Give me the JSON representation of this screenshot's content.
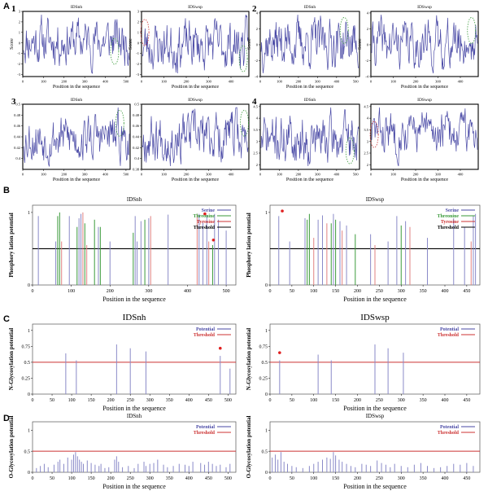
{
  "panel_labels": {
    "A": "A",
    "B": "B",
    "C": "C",
    "D": "D"
  },
  "chart_data": [
    {
      "id": "A1-IDSnh",
      "type": "line",
      "subplot": "1",
      "title": "IDSnh",
      "xlabel": "Position in the sequence",
      "ylabel": "Score",
      "ylim": [
        -3.2,
        3
      ],
      "yticks": [
        -3,
        -2,
        -1,
        0,
        1,
        2,
        3
      ],
      "xlim": [
        0,
        520
      ],
      "xticks": [
        0,
        100,
        200,
        300,
        400,
        500
      ],
      "seed": 11,
      "color": "#4a4aa6",
      "highlights": [
        {
          "x": 445,
          "y": -0.8,
          "color": "#3a9a3a"
        }
      ]
    },
    {
      "id": "A1-IDSwsp",
      "type": "line",
      "title": "IDSwsp",
      "xlabel": "Position in the sequence",
      "ylabel": "Score",
      "ylim": [
        -3.2,
        3
      ],
      "yticks": [
        -3,
        -2,
        -1,
        0,
        1,
        2,
        3
      ],
      "xlim": [
        0,
        480
      ],
      "xticks": [
        0,
        100,
        200,
        300,
        400
      ],
      "seed": 23,
      "color": "#4a4aa6",
      "highlights": [
        {
          "x": 15,
          "y": 1.0,
          "color": "#cc3333"
        },
        {
          "x": 455,
          "y": -1.5,
          "color": "#3a9a3a"
        }
      ]
    },
    {
      "id": "A2-IDSnh",
      "type": "line",
      "subplot": "2",
      "title": "IDSnh",
      "xlabel": "Position in the sequence",
      "ylabel": "Score",
      "ylim": [
        -4,
        4.2
      ],
      "yticks": [
        -4,
        -2,
        0,
        2,
        4
      ],
      "xlim": [
        0,
        520
      ],
      "xticks": [
        0,
        100,
        200,
        300,
        400,
        500
      ],
      "seed": 37,
      "color": "#4a4aa6",
      "highlights": [
        {
          "x": 440,
          "y": 1.8,
          "color": "#3a9a3a"
        }
      ]
    },
    {
      "id": "A2-IDSwsp",
      "type": "line",
      "title": "IDSwsp",
      "xlabel": "Position in the sequence",
      "ylabel": "Score",
      "ylim": [
        -4,
        4.2
      ],
      "yticks": [
        -4,
        -2,
        0,
        2,
        4
      ],
      "xlim": [
        0,
        480
      ],
      "xticks": [
        0,
        100,
        200,
        300,
        400
      ],
      "seed": 41,
      "color": "#4a4aa6",
      "highlights": [
        {
          "x": 450,
          "y": 1.8,
          "color": "#3a9a3a"
        }
      ]
    },
    {
      "id": "A3-IDSnh",
      "type": "line",
      "subplot": "3",
      "title": "IDSnh",
      "xlabel": "Position in the sequence",
      "ylabel": "",
      "ylim": [
        0.38,
        0.5
      ],
      "yticks": [
        0.4,
        0.42,
        0.44,
        0.46,
        0.48,
        0.5
      ],
      "xlim": [
        0,
        520
      ],
      "xticks": [
        0,
        100,
        200,
        300,
        400,
        500
      ],
      "seed": 53,
      "color": "#4a4aa6",
      "highlights": [
        {
          "x": 470,
          "y": 0.465,
          "color": "#3a9a3a"
        }
      ]
    },
    {
      "id": "A3-IDSwsp",
      "type": "line",
      "title": "IDSwsp",
      "xlabel": "Position in the sequence",
      "ylabel": "",
      "ylim": [
        0.38,
        0.5
      ],
      "yticks": [
        0.38,
        0.4,
        0.42,
        0.44,
        0.46,
        0.48,
        0.5
      ],
      "xlim": [
        0,
        480
      ],
      "xticks": [
        0,
        100,
        200,
        300,
        400
      ],
      "seed": 67,
      "color": "#4a4aa6",
      "highlights": [
        {
          "x": 460,
          "y": 0.465,
          "color": "#3a9a3a"
        }
      ]
    },
    {
      "id": "A4-IDSnh",
      "type": "line",
      "subplot": "4",
      "title": "IDSnh",
      "xlabel": "Position in the sequence",
      "ylabel": "",
      "ylim": [
        1.8,
        4.6
      ],
      "yticks": [
        2,
        2.5,
        3,
        3.5,
        4,
        4.5
      ],
      "xlim": [
        0,
        520
      ],
      "xticks": [
        0,
        100,
        200,
        300,
        400,
        500
      ],
      "seed": 71,
      "color": "#4a4aa6",
      "highlights": [
        {
          "x": 470,
          "y": 2.6,
          "color": "#3a9a3a"
        }
      ]
    },
    {
      "id": "A4-IDSwsp",
      "type": "line",
      "title": "IDSwsp",
      "xlabel": "Position in the sequence",
      "ylabel": "",
      "ylim": [
        1.8,
        4.6
      ],
      "yticks": [
        2,
        2.5,
        3,
        3.5,
        4,
        4.5
      ],
      "xlim": [
        0,
        480
      ],
      "xticks": [
        0,
        100,
        200,
        300,
        400
      ],
      "seed": 83,
      "color": "#4a4aa6",
      "highlights": [
        {
          "x": 15,
          "y": 3.3,
          "color": "#cc3333"
        }
      ]
    },
    {
      "id": "B-IDSnh",
      "type": "bar",
      "title": "IDSnh",
      "xlabel": "Position in the sequence",
      "ylabel": "Phosphory lation potential",
      "ylim": [
        0,
        1.1
      ],
      "yticks": [
        0,
        1
      ],
      "xlim": [
        0,
        525
      ],
      "xticks": [
        0,
        100,
        200,
        300,
        400,
        500
      ],
      "threshold": 0.5,
      "legend": [
        {
          "name": "Serine",
          "color": "#4a4aa6"
        },
        {
          "name": "Threonine",
          "color": "#3a9a3a"
        },
        {
          "name": "Tyrosine",
          "color": "#cc3333"
        },
        {
          "name": "Threshold",
          "color": "#000000"
        }
      ],
      "series": [
        {
          "name": "Serine",
          "color": "#8a8ac8",
          "x": [
            15,
            60,
            95,
            120,
            125,
            170,
            200,
            265,
            270,
            280,
            300,
            350,
            430,
            440,
            450,
            470,
            480,
            500
          ],
          "values": [
            0.95,
            0.6,
            0.95,
            0.92,
            0.98,
            0.8,
            0.6,
            0.95,
            0.6,
            0.88,
            0.92,
            0.97,
            0.98,
            0.88,
            0.96,
            0.98,
            0.9,
            0.75
          ]
        },
        {
          "name": "Threonine",
          "color": "#3a9a3a",
          "x": [
            65,
            70,
            115,
            135,
            160,
            175,
            260,
            290,
            465
          ],
          "values": [
            0.95,
            1.0,
            0.8,
            0.85,
            0.9,
            0.8,
            0.72,
            0.9,
            0.55
          ]
        },
        {
          "name": "Tyrosine",
          "color": "#e08080",
          "x": [
            75,
            130,
            140,
            305,
            425,
            455
          ],
          "values": [
            0.6,
            1.0,
            0.55,
            0.95,
            0.98,
            0.6
          ]
        }
      ],
      "markers": [
        {
          "x": 445,
          "y": 0.98
        },
        {
          "x": 467,
          "y": 0.62
        }
      ]
    },
    {
      "id": "B-IDSwsp",
      "type": "bar",
      "title": "IDSwsp",
      "xlabel": "Position in the sequence",
      "ylabel": "Phosphory lation potential",
      "ylim": [
        0,
        1.1
      ],
      "yticks": [
        0,
        1
      ],
      "xlim": [
        0,
        480
      ],
      "xticks": [
        0,
        50,
        100,
        150,
        200,
        250,
        300,
        350,
        400,
        450
      ],
      "threshold": 0.5,
      "legend": [
        {
          "name": "Serine",
          "color": "#4a4aa6"
        },
        {
          "name": "Threonine",
          "color": "#3a9a3a"
        },
        {
          "name": "Tyrosine",
          "color": "#cc3333"
        },
        {
          "name": "Threshold",
          "color": "#000000"
        }
      ],
      "series": [
        {
          "name": "Serine",
          "color": "#8a8ac8",
          "x": [
            20,
            45,
            80,
            110,
            120,
            145,
            160,
            175,
            230,
            270,
            290,
            310,
            360,
            420,
            445,
            465,
            470
          ],
          "values": [
            0.95,
            0.6,
            0.92,
            0.9,
            0.96,
            0.98,
            0.88,
            0.82,
            0.7,
            0.6,
            0.95,
            0.88,
            0.65,
            0.92,
            0.8,
            0.96,
            0.98
          ]
        },
        {
          "name": "Threonine",
          "color": "#3a9a3a",
          "x": [
            85,
            90,
            140,
            150,
            195,
            300
          ],
          "values": [
            0.9,
            0.98,
            0.85,
            0.9,
            0.7,
            0.82
          ]
        },
        {
          "name": "Tyrosine",
          "color": "#e08080",
          "x": [
            100,
            130,
            165,
            240,
            320,
            460
          ],
          "values": [
            0.65,
            0.85,
            0.75,
            0.55,
            0.8,
            0.6
          ]
        }
      ],
      "markers": [
        {
          "x": 28,
          "y": 1.02
        }
      ]
    },
    {
      "id": "C-IDSnh",
      "type": "bar",
      "title": "IDSnh",
      "xlabel": "Position in the sequence",
      "ylabel": "N-Glycosylation potential",
      "ylim": [
        0,
        1.1
      ],
      "yticks": [
        0,
        0.25,
        0.5,
        0.75,
        1
      ],
      "xlim": [
        0,
        520
      ],
      "xticks": [
        0,
        50,
        100,
        150,
        200,
        250,
        300,
        350,
        400,
        450,
        500
      ],
      "threshold": 0.5,
      "legend": [
        {
          "name": "Potential",
          "color": "#4a4aa6"
        },
        {
          "name": "Threshold",
          "color": "#cc3333"
        }
      ],
      "series": [
        {
          "name": "Potential",
          "color": "#8a8ac8",
          "x": [
            85,
            112,
            215,
            250,
            290,
            480,
            505
          ],
          "values": [
            0.64,
            0.53,
            0.78,
            0.72,
            0.67,
            0.6,
            0.4
          ]
        }
      ],
      "markers": [
        {
          "x": 480,
          "y": 0.72
        }
      ]
    },
    {
      "id": "C-IDSwsp",
      "type": "bar",
      "title": "IDSwsp",
      "xlabel": "Position in the sequence",
      "ylabel": "N-Glycosylation potential",
      "ylim": [
        0,
        1.1
      ],
      "yticks": [
        0,
        0.25,
        0.5,
        0.75,
        1
      ],
      "xlim": [
        0,
        480
      ],
      "xticks": [
        0,
        50,
        100,
        150,
        200,
        250,
        300,
        350,
        400,
        450
      ],
      "threshold": 0.5,
      "legend": [
        {
          "name": "Potential",
          "color": "#4a4aa6"
        },
        {
          "name": "Threshold",
          "color": "#cc3333"
        }
      ],
      "series": [
        {
          "name": "Potential",
          "color": "#8a8ac8",
          "x": [
            22,
            110,
            140,
            240,
            270,
            305
          ],
          "values": [
            0.53,
            0.62,
            0.53,
            0.78,
            0.72,
            0.65
          ]
        }
      ],
      "markers": [
        {
          "x": 22,
          "y": 0.65
        }
      ]
    },
    {
      "id": "D-IDSnh",
      "type": "bar",
      "title": "IDSnh",
      "xlabel": "Position in the sequence",
      "ylabel": "O-Glycosylation potential",
      "ylim": [
        0,
        1.2
      ],
      "yticks": [
        0,
        0.5,
        1
      ],
      "xlim": [
        0,
        520
      ],
      "xticks": [
        0,
        50,
        100,
        150,
        200,
        250,
        300,
        350,
        400,
        450,
        500
      ],
      "threshold": 0.5,
      "legend": [
        {
          "name": "Potential",
          "color": "#4a4aa6"
        },
        {
          "name": "Threshold",
          "color": "#cc3333"
        }
      ],
      "series": [
        {
          "name": "Potential",
          "color": "#8a8ac8",
          "x": [
            10,
            20,
            30,
            40,
            55,
            65,
            70,
            80,
            90,
            100,
            105,
            110,
            115,
            120,
            125,
            130,
            140,
            150,
            160,
            170,
            175,
            185,
            195,
            210,
            215,
            220,
            230,
            245,
            260,
            270,
            285,
            290,
            300,
            310,
            320,
            335,
            345,
            360,
            375,
            390,
            400,
            410,
            430,
            440,
            450,
            460,
            470,
            480,
            495,
            505
          ],
          "values": [
            0.1,
            0.15,
            0.2,
            0.12,
            0.18,
            0.25,
            0.3,
            0.2,
            0.35,
            0.3,
            0.42,
            0.48,
            0.38,
            0.3,
            0.25,
            0.2,
            0.28,
            0.22,
            0.18,
            0.15,
            0.2,
            0.1,
            0.12,
            0.3,
            0.38,
            0.25,
            0.12,
            0.15,
            0.1,
            0.2,
            0.25,
            0.15,
            0.2,
            0.22,
            0.3,
            0.18,
            0.12,
            0.15,
            0.2,
            0.18,
            0.15,
            0.25,
            0.22,
            0.18,
            0.25,
            0.2,
            0.15,
            0.18,
            0.12,
            0.2
          ]
        }
      ]
    },
    {
      "id": "D-IDSwsp",
      "type": "bar",
      "title": "IDSwsp",
      "xlabel": "Position in the sequence",
      "ylabel": "O-Glycosylation potential",
      "ylim": [
        0,
        1.2
      ],
      "yticks": [
        0,
        0.5,
        1
      ],
      "xlim": [
        0,
        480
      ],
      "xticks": [
        0,
        50,
        100,
        150,
        200,
        250,
        300,
        350,
        400,
        450
      ],
      "threshold": 0.5,
      "legend": [
        {
          "name": "Potential",
          "color": "#4a4aa6"
        },
        {
          "name": "Threshold",
          "color": "#cc3333"
        }
      ],
      "series": [
        {
          "name": "Potential",
          "color": "#8a8ac8",
          "x": [
            5,
            12,
            18,
            25,
            32,
            40,
            50,
            60,
            75,
            90,
            100,
            110,
            120,
            130,
            138,
            145,
            150,
            158,
            165,
            175,
            185,
            195,
            210,
            220,
            230,
            245,
            255,
            265,
            275,
            285,
            300,
            315,
            330,
            345,
            360,
            375,
            390,
            405,
            420,
            435,
            450,
            465
          ],
          "values": [
            0.35,
            0.42,
            0.3,
            0.48,
            0.25,
            0.2,
            0.15,
            0.12,
            0.1,
            0.15,
            0.2,
            0.25,
            0.3,
            0.35,
            0.32,
            0.48,
            0.4,
            0.3,
            0.25,
            0.2,
            0.15,
            0.12,
            0.2,
            0.18,
            0.15,
            0.28,
            0.22,
            0.18,
            0.12,
            0.2,
            0.15,
            0.12,
            0.18,
            0.22,
            0.15,
            0.1,
            0.12,
            0.15,
            0.2,
            0.18,
            0.22,
            0.15
          ]
        }
      ]
    }
  ]
}
